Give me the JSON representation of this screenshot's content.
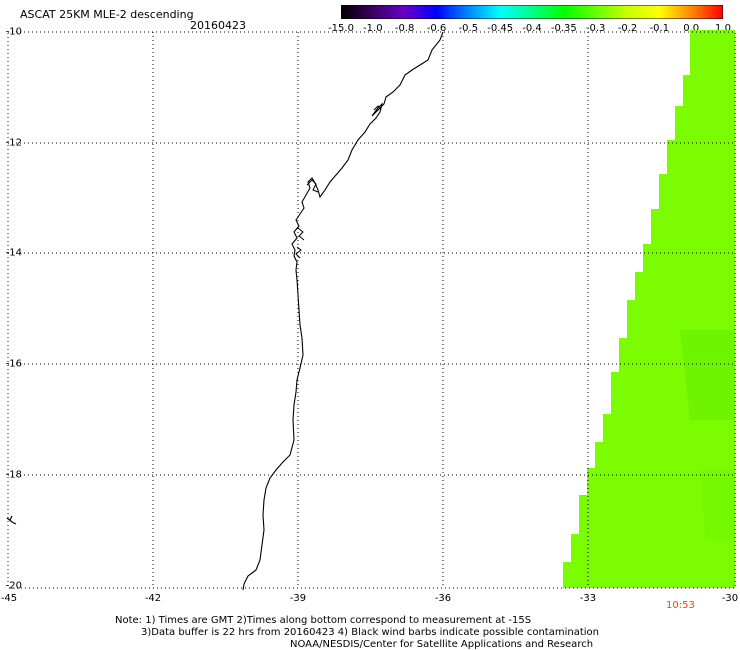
{
  "header": {
    "title": "ASCAT 25KM MLE-2 descending",
    "date": "20160423"
  },
  "colorbar": {
    "labels": [
      "-15.0",
      "-1.0",
      "-0.8",
      "-0.6",
      "-0.5",
      "-0.45",
      "-0.4",
      "-0.35",
      "-0.3",
      "-0.2",
      "-0.1",
      "0.0",
      "1.0"
    ],
    "colors": [
      "#000000",
      "#3a0060",
      "#6a00c8",
      "#0000ff",
      "#0088ff",
      "#00ffff",
      "#00ff88",
      "#00ff00",
      "#66ff00",
      "#c8ff00",
      "#ffff00",
      "#ff8800",
      "#ff0000"
    ]
  },
  "axes": {
    "y_labels": [
      "-10",
      "-12",
      "-14",
      "-16",
      "-18",
      "-20"
    ],
    "x_labels": [
      "-45",
      "-42",
      "-39",
      "-36",
      "-33",
      "-30"
    ]
  },
  "swath": {
    "color": "#7cfc00",
    "value_label": "-0.3"
  },
  "time_label": "10:53",
  "notes": {
    "line1": "Note: 1) Times are GMT 2)Times along bottom correspond to measurement at -15S",
    "line2": "3)Data buffer is 22 hrs from 20160423 4) Black wind barbs indicate possible contamination",
    "line3": "NOAA/NESDIS/Center for Satellite Applications and Research"
  }
}
